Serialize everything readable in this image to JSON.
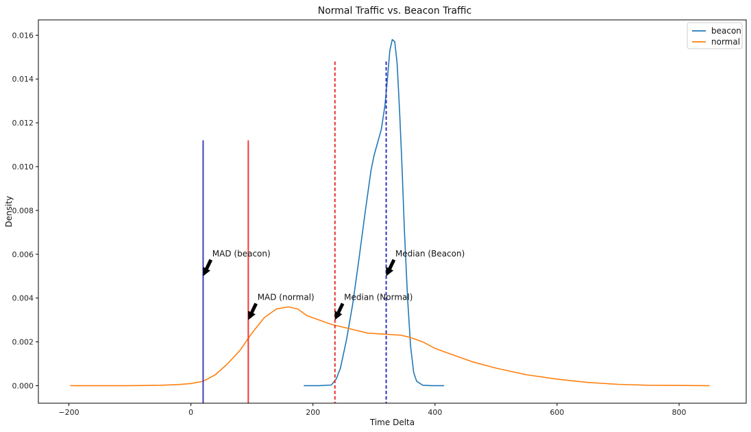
{
  "chart_data": {
    "type": "line",
    "title": "Normal Traffic vs. Beacon Traffic",
    "xlabel": "Time Delta",
    "ylabel": "Density",
    "xlim": [
      -250,
      910
    ],
    "ylim": [
      -0.0008,
      0.0167
    ],
    "xticks": [
      -200,
      0,
      200,
      400,
      600,
      800
    ],
    "xtick_labels": [
      "−200",
      "0",
      "200",
      "400",
      "600",
      "800"
    ],
    "yticks": [
      0,
      0.002,
      0.004,
      0.006,
      0.008,
      0.01,
      0.012,
      0.014,
      0.016
    ],
    "ytick_labels": [
      "0.000",
      "0.002",
      "0.004",
      "0.006",
      "0.008",
      "0.010",
      "0.012",
      "0.014",
      "0.016"
    ],
    "legend_position": "top-right",
    "grid": false,
    "series": [
      {
        "name": "beacon",
        "color": "#1f77b4",
        "x": [
          185,
          210,
          230,
          238,
          245,
          255,
          265,
          275,
          285,
          295,
          300,
          305,
          312,
          318,
          322,
          326,
          330,
          334,
          338,
          342,
          346,
          350,
          355,
          360,
          365,
          370,
          380,
          395,
          415
        ],
        "y": [
          0,
          0,
          3e-05,
          0.0003,
          0.0008,
          0.0021,
          0.0037,
          0.0057,
          0.0078,
          0.0098,
          0.0105,
          0.011,
          0.0117,
          0.0128,
          0.014,
          0.0153,
          0.0158,
          0.0157,
          0.0147,
          0.0125,
          0.01,
          0.007,
          0.004,
          0.0018,
          0.0006,
          0.0002,
          2e-05,
          0,
          0
        ]
      },
      {
        "name": "normal",
        "color": "#ff7f0e",
        "x": [
          -198,
          -100,
          -50,
          -20,
          0,
          10,
          20,
          40,
          60,
          80,
          100,
          120,
          140,
          160,
          175,
          190,
          210,
          230,
          260,
          290,
          320,
          345,
          360,
          380,
          400,
          430,
          460,
          500,
          550,
          600,
          650,
          700,
          750,
          800,
          850
        ],
        "y": [
          0,
          0,
          2e-05,
          5e-05,
          0.0001,
          0.00015,
          0.0002,
          0.0005,
          0.001,
          0.0016,
          0.0024,
          0.0031,
          0.0035,
          0.0036,
          0.0035,
          0.0032,
          0.003,
          0.0028,
          0.0026,
          0.0024,
          0.00235,
          0.0023,
          0.0022,
          0.002,
          0.0017,
          0.0014,
          0.0011,
          0.0008,
          0.0005,
          0.0003,
          0.00015,
          6e-05,
          2e-05,
          1e-05,
          0
        ]
      }
    ],
    "vlines": [
      {
        "name": "mad-beacon",
        "x": 20,
        "ymin": 0.0112,
        "color": "#3f3fbf",
        "style": "solid"
      },
      {
        "name": "mad-normal",
        "x": 94,
        "ymin": 0.0112,
        "color": "#ef3b36",
        "style": "solid"
      },
      {
        "name": "median-normal",
        "x": 236,
        "ymin": 0.0148,
        "color": "#e4322b",
        "style": "dashed"
      },
      {
        "name": "median-beacon",
        "x": 320,
        "ymin": 0.0148,
        "color": "#2f2fbf",
        "style": "dashed"
      }
    ],
    "annotations": [
      {
        "name": "mad-beacon",
        "text": "MAD (beacon)",
        "text_x": 35,
        "text_y": 0.006,
        "arrow_x": 20,
        "arrow_y": 0.005
      },
      {
        "name": "mad-normal",
        "text": "MAD (normal)",
        "text_x": 109,
        "text_y": 0.004,
        "arrow_x": 94,
        "arrow_y": 0.003
      },
      {
        "name": "median-normal",
        "text": "Median (Normal)",
        "text_x": 251,
        "text_y": 0.004,
        "arrow_x": 236,
        "arrow_y": 0.003
      },
      {
        "name": "median-beacon",
        "text": "Median (Beacon)",
        "text_x": 335,
        "text_y": 0.006,
        "arrow_x": 320,
        "arrow_y": 0.005
      }
    ]
  }
}
